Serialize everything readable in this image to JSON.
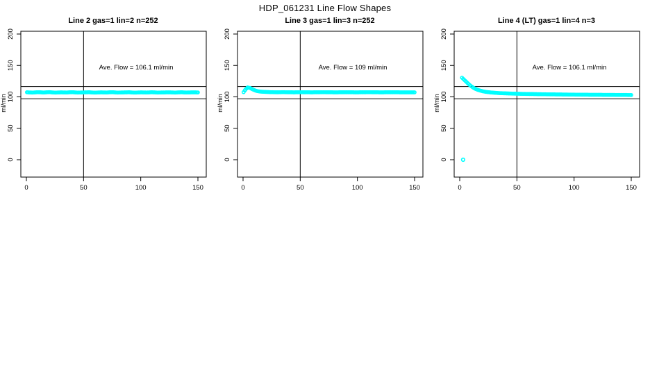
{
  "colors": {
    "points": "#00ffff",
    "axis": "#000000",
    "background": "#ffffff"
  },
  "chart_data": {
    "type": "scatter",
    "title": "HDP_061231  Line Flow Shapes",
    "ylabel": "ml/min",
    "xlabel": "",
    "xticks": [
      0,
      50,
      100,
      150
    ],
    "yticks": [
      0,
      50,
      100,
      150,
      200
    ],
    "xlim": [
      0,
      157
    ],
    "ylim": [
      -28,
      204
    ],
    "grid": false,
    "legend": "none",
    "vline_x": 50,
    "hlines": [
      116.5,
      97
    ],
    "point_color": "#00ffff",
    "panels": [
      {
        "title": "Line 2 gas=1 lin=2 n=252",
        "annotation": "Ave. Flow =  106.1  ml/min",
        "ave_flow": 106.1,
        "units": "ml/min",
        "n": 252,
        "profile": [
          [
            0.5,
            107.3
          ],
          [
            5,
            106.9
          ],
          [
            10,
            107.4
          ],
          [
            15,
            107.0
          ],
          [
            20,
            107.5
          ],
          [
            25,
            106.8
          ],
          [
            30,
            107.2
          ],
          [
            35,
            107.0
          ],
          [
            40,
            107.4
          ],
          [
            45,
            106.9
          ],
          [
            50,
            107.1
          ],
          [
            55,
            107.3
          ],
          [
            60,
            106.8
          ],
          [
            65,
            107.2
          ],
          [
            70,
            107.0
          ],
          [
            75,
            107.4
          ],
          [
            80,
            106.9
          ],
          [
            85,
            107.1
          ],
          [
            90,
            107.3
          ],
          [
            95,
            106.8
          ],
          [
            100,
            107.2
          ],
          [
            105,
            107.0
          ],
          [
            110,
            107.3
          ],
          [
            115,
            106.9
          ],
          [
            120,
            107.1
          ],
          [
            125,
            107.2
          ],
          [
            130,
            106.9
          ],
          [
            135,
            107.3
          ],
          [
            140,
            107.0
          ],
          [
            145,
            107.2
          ],
          [
            150,
            107.1
          ]
        ],
        "outliers": []
      },
      {
        "title": "Line 3 gas=1 lin=3 n=252",
        "annotation": "Ave. Flow =  109  ml/min",
        "ave_flow": 109,
        "units": "ml/min",
        "n": 252,
        "profile": [
          [
            0.5,
            107.5
          ],
          [
            2,
            111.5
          ],
          [
            4,
            115.0
          ],
          [
            6,
            114.2
          ],
          [
            8,
            112.3
          ],
          [
            10,
            110.6
          ],
          [
            12,
            109.4
          ],
          [
            15,
            108.4
          ],
          [
            20,
            107.8
          ],
          [
            25,
            107.5
          ],
          [
            30,
            107.3
          ],
          [
            35,
            107.5
          ],
          [
            40,
            107.3
          ],
          [
            45,
            107.2
          ],
          [
            50,
            107.4
          ],
          [
            60,
            107.2
          ],
          [
            70,
            107.4
          ],
          [
            80,
            107.2
          ],
          [
            90,
            107.3
          ],
          [
            100,
            107.2
          ],
          [
            110,
            107.4
          ],
          [
            120,
            107.2
          ],
          [
            130,
            107.3
          ],
          [
            140,
            107.2
          ],
          [
            150,
            107.2
          ]
        ],
        "outliers": []
      },
      {
        "title": "Line 4 (LT) gas=1 lin=4 n=3",
        "annotation": "Ave. Flow =  106.1  ml/min",
        "ave_flow": 106.1,
        "units": "ml/min",
        "n": 3,
        "profile": [
          [
            2,
            130.5
          ],
          [
            4,
            127.0
          ],
          [
            6,
            123.5
          ],
          [
            8,
            120.0
          ],
          [
            10,
            117.0
          ],
          [
            12,
            114.5
          ],
          [
            14,
            112.5
          ],
          [
            16,
            111.0
          ],
          [
            18,
            110.0
          ],
          [
            20,
            109.0
          ],
          [
            23,
            108.0
          ],
          [
            26,
            107.3
          ],
          [
            30,
            106.6
          ],
          [
            35,
            106.0
          ],
          [
            40,
            105.6
          ],
          [
            45,
            105.3
          ],
          [
            50,
            105.0
          ],
          [
            60,
            104.6
          ],
          [
            70,
            104.3
          ],
          [
            80,
            104.0
          ],
          [
            90,
            103.8
          ],
          [
            100,
            103.6
          ],
          [
            110,
            103.4
          ],
          [
            120,
            103.3
          ],
          [
            130,
            103.2
          ],
          [
            140,
            103.1
          ],
          [
            150,
            103.0
          ]
        ],
        "outliers": [
          [
            3,
            0
          ]
        ]
      }
    ]
  }
}
